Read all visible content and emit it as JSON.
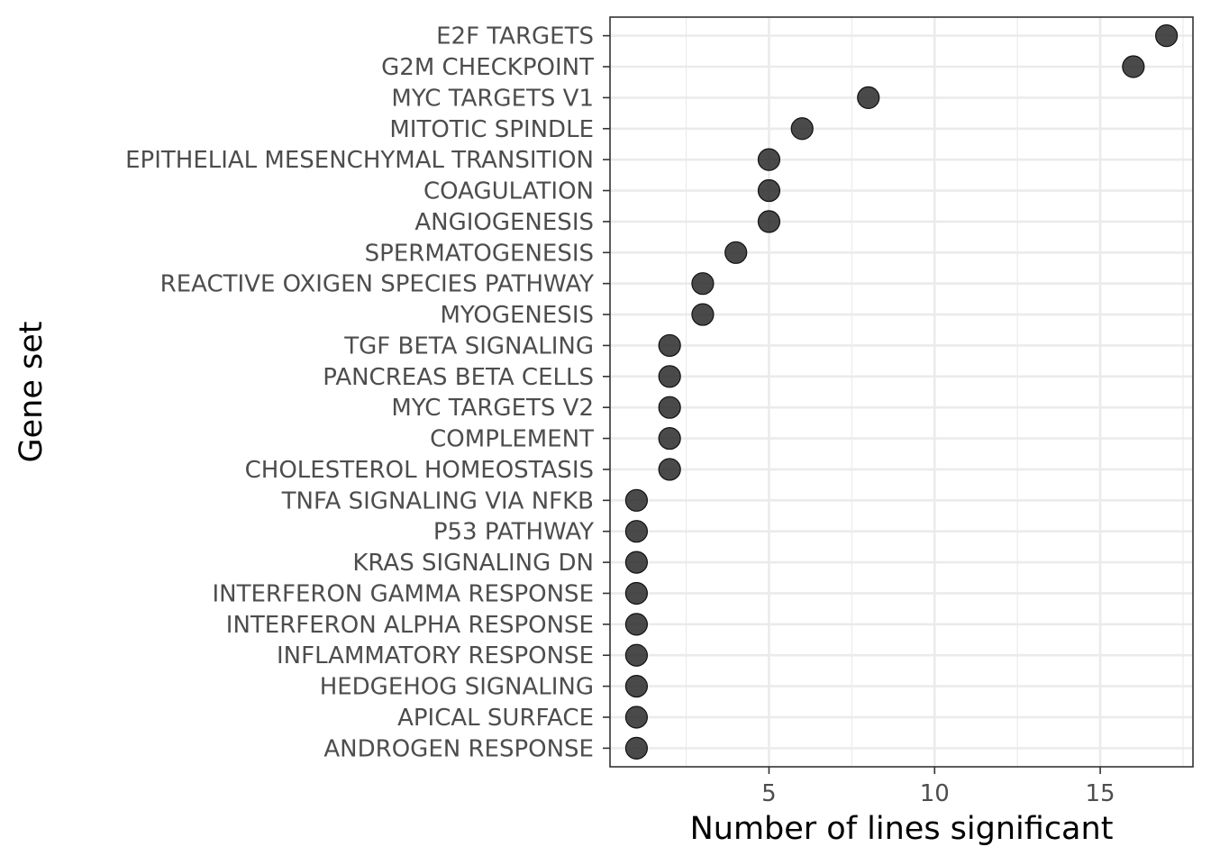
{
  "chart_data": {
    "type": "scatter",
    "title": "",
    "xlabel": "Number of lines significant",
    "ylabel": "Gene set",
    "xlim": [
      0.2,
      17.8
    ],
    "x_ticks": [
      5,
      10,
      15
    ],
    "grid": true,
    "legend": "none",
    "point_color": "#222222",
    "categories": [
      "E2F TARGETS",
      "G2M CHECKPOINT",
      "MYC TARGETS V1",
      "MITOTIC SPINDLE",
      "EPITHELIAL MESENCHYMAL TRANSITION",
      "COAGULATION",
      "ANGIOGENESIS",
      "SPERMATOGENESIS",
      "REACTIVE OXIGEN SPECIES PATHWAY",
      "MYOGENESIS",
      "TGF BETA SIGNALING",
      "PANCREAS BETA CELLS",
      "MYC TARGETS V2",
      "COMPLEMENT",
      "CHOLESTEROL HOMEOSTASIS",
      "TNFA SIGNALING VIA NFKB",
      "P53 PATHWAY",
      "KRAS SIGNALING DN",
      "INTERFERON GAMMA RESPONSE",
      "INTERFERON ALPHA RESPONSE",
      "INFLAMMATORY RESPONSE",
      "HEDGEHOG SIGNALING",
      "APICAL SURFACE",
      "ANDROGEN RESPONSE"
    ],
    "values": [
      17,
      16,
      8,
      6,
      5,
      5,
      5,
      4,
      3,
      3,
      2,
      2,
      2,
      2,
      2,
      1,
      1,
      1,
      1,
      1,
      1,
      1,
      1,
      1
    ]
  }
}
